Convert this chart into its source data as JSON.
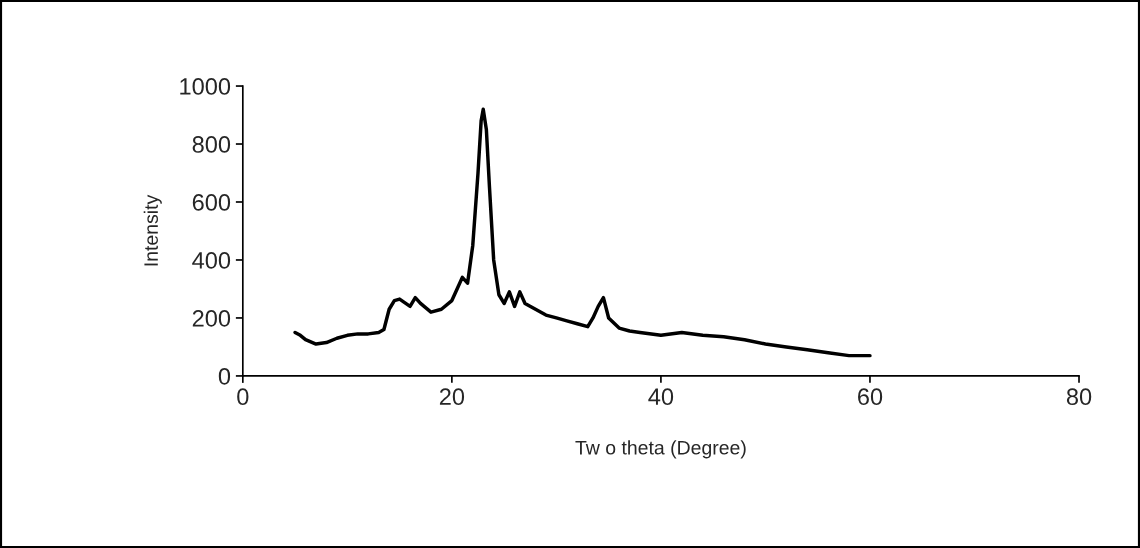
{
  "chart_data": {
    "type": "line",
    "xlabel": "Tw o theta (Degree)",
    "ylabel": "Intensity",
    "x": [
      5,
      5.5,
      6,
      7,
      8,
      9,
      10,
      11,
      12,
      13,
      13.5,
      14,
      14.5,
      15,
      16,
      16.5,
      17,
      18,
      19,
      20,
      20.5,
      21,
      21.5,
      22,
      22.5,
      22.8,
      23,
      23.3,
      23.6,
      24,
      24.5,
      25,
      25.5,
      26,
      26.5,
      27,
      28,
      29,
      30,
      31,
      32,
      33,
      33.5,
      34,
      34.5,
      35,
      36,
      37,
      38,
      40,
      42,
      44,
      46,
      48,
      50,
      52,
      54,
      56,
      58,
      60
    ],
    "series": [
      {
        "color": "#000000",
        "values": [
          150,
          140,
          125,
          110,
          115,
          130,
          140,
          145,
          145,
          150,
          160,
          230,
          260,
          265,
          240,
          270,
          250,
          220,
          230,
          260,
          300,
          340,
          320,
          450,
          700,
          880,
          920,
          850,
          650,
          400,
          280,
          250,
          290,
          240,
          290,
          250,
          230,
          210,
          200,
          190,
          180,
          170,
          200,
          240,
          270,
          200,
          165,
          155,
          150,
          140,
          150,
          140,
          135,
          125,
          110,
          100,
          90,
          80,
          70,
          70
        ]
      }
    ],
    "xlim": [
      0,
      80
    ],
    "xticks": [
      0,
      20,
      40,
      60,
      80
    ],
    "ylim": [
      0,
      1000
    ],
    "yticks": [
      0,
      200,
      400,
      600,
      800,
      1000
    ],
    "grid": false,
    "marker": "none",
    "line_style": "solid"
  }
}
